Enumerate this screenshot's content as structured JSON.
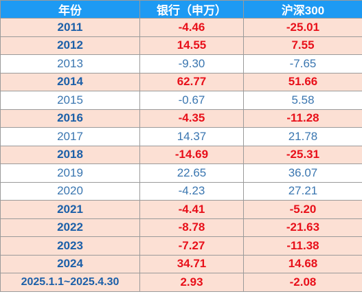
{
  "table": {
    "headers": [
      "年份",
      "银行（申万）",
      "沪深300"
    ],
    "rows": [
      {
        "year": "2011",
        "bank": "-4.46",
        "csi300": "-25.01",
        "highlight": true,
        "bold": true
      },
      {
        "year": "2012",
        "bank": "14.55",
        "csi300": "7.55",
        "highlight": true,
        "bold": true
      },
      {
        "year": "2013",
        "bank": "-9.30",
        "csi300": "-7.65",
        "highlight": false,
        "bold": false
      },
      {
        "year": "2014",
        "bank": "62.77",
        "csi300": "51.66",
        "highlight": true,
        "bold": true
      },
      {
        "year": "2015",
        "bank": "-0.67",
        "csi300": "5.58",
        "highlight": false,
        "bold": false
      },
      {
        "year": "2016",
        "bank": "-4.35",
        "csi300": "-11.28",
        "highlight": true,
        "bold": true
      },
      {
        "year": "2017",
        "bank": "14.37",
        "csi300": "21.78",
        "highlight": false,
        "bold": false
      },
      {
        "year": "2018",
        "bank": "-14.69",
        "csi300": "-25.31",
        "highlight": true,
        "bold": true
      },
      {
        "year": "2019",
        "bank": "22.65",
        "csi300": "36.07",
        "highlight": false,
        "bold": false
      },
      {
        "year": "2020",
        "bank": "-4.23",
        "csi300": "27.21",
        "highlight": false,
        "bold": false
      },
      {
        "year": "2021",
        "bank": "-4.41",
        "csi300": "-5.20",
        "highlight": true,
        "bold": true
      },
      {
        "year": "2022",
        "bank": "-8.78",
        "csi300": "-21.63",
        "highlight": true,
        "bold": true
      },
      {
        "year": "2023",
        "bank": "-7.27",
        "csi300": "-11.38",
        "highlight": true,
        "bold": true
      },
      {
        "year": "2024",
        "bank": "34.71",
        "csi300": "14.68",
        "highlight": true,
        "bold": true
      },
      {
        "year": "2025.1.1~2025.4.30",
        "bank": "2.93",
        "csi300": "-2.08",
        "highlight": true,
        "bold": true
      }
    ]
  },
  "colors": {
    "header_bg": "#1d9af3",
    "header_text": "#ffffff",
    "highlight_row_bg": "#fce0d4",
    "value_red": "#e8101a",
    "year_blue": "#1b5fa8",
    "plain_blue": "#3a76b0"
  }
}
